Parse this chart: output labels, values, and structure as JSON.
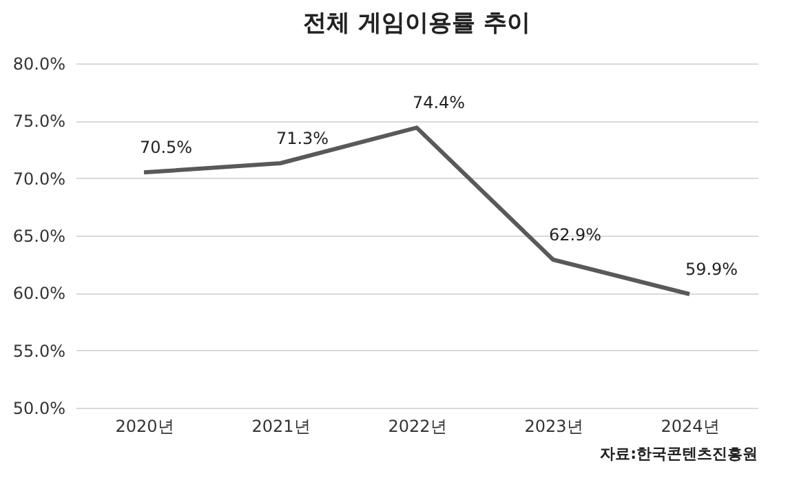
{
  "chart_data": {
    "type": "line",
    "title": "전체 게임이용률 추이",
    "categories": [
      "2020년",
      "2021년",
      "2022년",
      "2023년",
      "2024년"
    ],
    "series": [
      {
        "color": "#595959",
        "values": [
          70.5,
          71.3,
          74.4,
          62.9,
          59.9
        ],
        "value_labels": [
          "70.5%",
          "71.3%",
          "74.4%",
          "62.9%",
          "59.9%"
        ]
      }
    ],
    "ylim": [
      50,
      80
    ],
    "yticks": [
      {
        "value": 50,
        "label": "50.0%"
      },
      {
        "value": 55,
        "label": "55.0%"
      },
      {
        "value": 60,
        "label": "60.0%"
      },
      {
        "value": 65,
        "label": "65.0%"
      },
      {
        "value": 70,
        "label": "70.0%"
      },
      {
        "value": 75,
        "label": "75.0%"
      },
      {
        "value": 80,
        "label": "80.0%"
      }
    ],
    "grid": "y",
    "marker": "none",
    "line_style": "solid",
    "annotations": [
      "자료:한국콘텐츠진흥원"
    ]
  }
}
